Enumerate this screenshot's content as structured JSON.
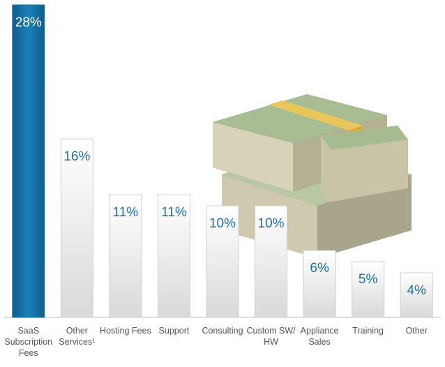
{
  "chart_data": {
    "type": "bar",
    "categories": [
      "SaaS Subscription Fees",
      "Other Services¹",
      "Hosting Fees",
      "Support",
      "Consulting",
      "Custom SW/ HW",
      "Appliance Sales",
      "Training",
      "Other"
    ],
    "values": [
      28,
      16,
      11,
      11,
      10,
      10,
      6,
      5,
      4
    ],
    "value_labels": [
      "28%",
      "16%",
      "11%",
      "11%",
      "10%",
      "10%",
      "6%",
      "5%",
      "4%"
    ],
    "colors": [
      "#1677ad",
      "#e4e4e4",
      "#e4e4e4",
      "#e4e4e4",
      "#e4e4e4",
      "#e4e4e4",
      "#e4e4e4",
      "#e4e4e4",
      "#e4e4e4"
    ]
  }
}
